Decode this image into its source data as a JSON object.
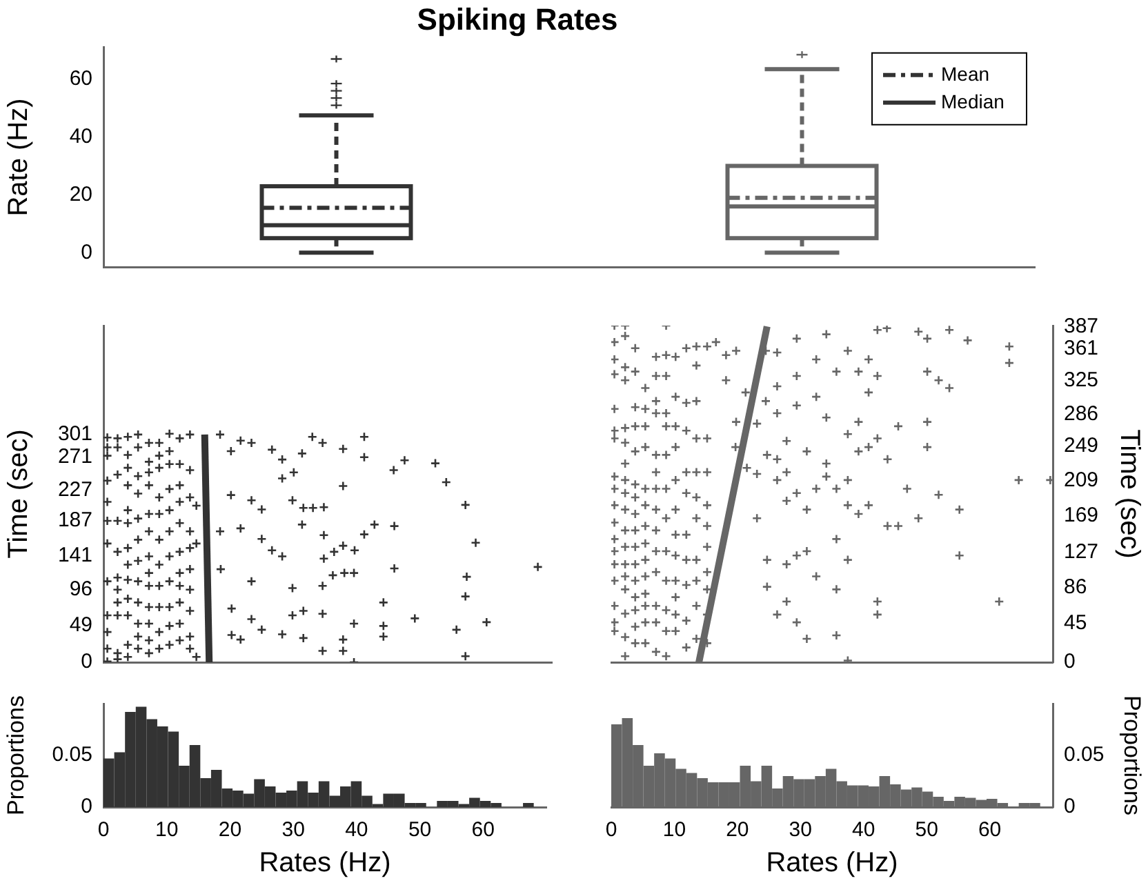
{
  "chart_data": [
    {
      "type": "box",
      "title": "Spiking Rates",
      "ylabel": "Rate (Hz)",
      "categories": [
        null,
        null
      ],
      "colors": [
        "#333333",
        "#666666"
      ],
      "ylim": [
        -5,
        71
      ],
      "yticks": [
        0,
        20,
        40,
        60
      ],
      "annotations": [
        "Mean",
        "Median"
      ],
      "boxes": [
        {
          "low": 0,
          "q1": 5,
          "median": 9.5,
          "q3": 23,
          "high": 47.5,
          "mean": 15.5,
          "outliers": [
            51,
            53.5,
            56,
            58.5,
            67
          ]
        },
        {
          "low": 0,
          "q1": 5,
          "median": 16,
          "q3": 30,
          "high": 63.5,
          "mean": 19,
          "outliers": [
            68.5
          ]
        }
      ]
    },
    {
      "type": "scatter",
      "ylabel": "Time (sec)",
      "xlim": [
        0,
        70
      ],
      "ylim": [
        0,
        445
      ],
      "yticks": [
        0,
        49,
        96,
        141,
        187,
        227,
        271,
        301
      ],
      "tick_labels": "y",
      "series": [
        {
          "color": "#333333",
          "marker": "cross",
          "x": [
            0.6,
            0.6,
            0.6,
            0.6,
            0.6,
            0.6,
            0.6,
            0.6,
            0.6,
            0.6,
            0.6,
            0.6,
            2.2,
            2.2,
            2.2,
            2.2,
            2.2,
            2.2,
            2.2,
            2.2,
            2.2,
            2.2,
            2.2,
            3.8,
            3.8,
            3.8,
            3.8,
            3.8,
            3.8,
            3.8,
            3.8,
            3.8,
            3.8,
            3.8,
            3.8,
            3.8,
            5.4,
            5.4,
            5.4,
            5.4,
            5.4,
            5.4,
            5.4,
            5.4,
            5.4,
            5.4,
            5.4,
            5.4,
            7.1,
            7.1,
            7.1,
            7.1,
            7.1,
            7.1,
            7.1,
            7.1,
            7.1,
            7.1,
            7.1,
            7.1,
            7.1,
            8.7,
            8.7,
            8.7,
            8.7,
            8.7,
            8.7,
            8.7,
            8.7,
            8.7,
            8.7,
            8.7,
            10.3,
            10.3,
            10.3,
            10.3,
            10.3,
            10.3,
            10.3,
            10.3,
            10.3,
            10.3,
            10.3,
            11.9,
            11.9,
            11.9,
            11.9,
            11.9,
            11.9,
            11.9,
            11.9,
            11.9,
            11.9,
            11.9,
            13.5,
            13.5,
            13.5,
            13.5,
            13.5,
            13.5,
            13.5,
            13.5,
            13.5,
            13.5,
            14.5,
            14.5,
            14.5,
            18.2,
            19.9,
            21.4,
            23.1,
            26.3,
            27.9,
            29.7,
            31.0,
            32.6,
            34.2,
            37.4,
            40.7,
            40.7,
            45.3,
            47.0,
            51.8,
            53.5,
            56.5,
            19.9,
            23.1,
            24.7,
            27.9,
            29.5,
            31.2,
            32.7,
            34.4,
            37.4,
            31.0,
            34.4,
            37.4,
            42.3,
            45.4,
            18.2,
            21.4,
            24.7,
            26.3,
            27.9,
            34.4,
            36.0,
            39.2,
            40.7,
            58.1,
            18.3,
            23.1,
            29.5,
            34.2,
            35.8,
            37.6,
            39.1,
            45.4,
            67.8,
            56.7,
            20.0,
            23.1,
            24.7,
            27.9,
            29.5,
            31.2,
            34.2,
            39.1,
            43.7,
            43.7,
            43.7,
            48.6,
            55.1,
            59.8,
            56.5,
            20.0,
            21.4,
            31.2,
            34.2,
            37.4,
            37.4,
            39.1,
            56.5
          ],
          "values": [
            297,
            284,
            273,
            240,
            212,
            187,
            157,
            107,
            62,
            40,
            18,
            1,
            296,
            284,
            248,
            187,
            146,
            112,
            96,
            79,
            62,
            12,
            4,
            298,
            274,
            257,
            234,
            201,
            184,
            151,
            129,
            109,
            84,
            62,
            23,
            7,
            301,
            284,
            246,
            223,
            190,
            162,
            134,
            107,
            79,
            51,
            34,
            18,
            290,
            265,
            251,
            234,
            196,
            173,
            140,
            118,
            101,
            73,
            51,
            29,
            12,
            290,
            273,
            257,
            218,
            196,
            162,
            129,
            101,
            73,
            40,
            18,
            302,
            279,
            262,
            229,
            201,
            173,
            140,
            107,
            73,
            48,
            23,
            296,
            262,
            234,
            212,
            184,
            146,
            118,
            101,
            79,
            51,
            29,
            301,
            254,
            218,
            173,
            151,
            123,
            96,
            68,
            34,
            18,
            207,
            157,
            7,
            301,
            279,
            293,
            290,
            281,
            268,
            251,
            276,
            298,
            290,
            282,
            298,
            271,
            254,
            267,
            263,
            238,
            208,
            221,
            214,
            202,
            243,
            214,
            204,
            204,
            205,
            233,
            182,
            168,
            154,
            182,
            180,
            173,
            177,
            163,
            148,
            140,
            137,
            146,
            148,
            169,
            158,
            123,
            107,
            98,
            101,
            115,
            118,
            118,
            124,
            126,
            113,
            71,
            57,
            43,
            37,
            62,
            68,
            64,
            51,
            79,
            48,
            34,
            58,
            43,
            53,
            87,
            36,
            30,
            32,
            15,
            15,
            30,
            0,
            8
          ]
        },
        {
          "type": "line",
          "color": "#333333",
          "x": [
            16.5,
            15.8
          ],
          "values": [
            0,
            301
          ]
        }
      ]
    },
    {
      "type": "scatter",
      "y2label": "Time (sec)",
      "xlim": [
        0,
        70
      ],
      "y2lim": [
        0,
        388
      ],
      "y2ticks": [
        0,
        45,
        86,
        127,
        169,
        209,
        249,
        286,
        325,
        361,
        387
      ],
      "tick_labels": "y",
      "series": [
        {
          "color": "#666666",
          "axis": "y2",
          "marker": "cross",
          "x": [
            0.5,
            0.5,
            0.5,
            0.5,
            0.5,
            0.5,
            0.5,
            0.5,
            0.5,
            0.5,
            0.5,
            0.5,
            0.5,
            0.5,
            0.5,
            0.5,
            0.5,
            0.5,
            2.2,
            2.2,
            2.2,
            2.2,
            2.2,
            2.2,
            2.2,
            2.2,
            2.2,
            2.2,
            2.2,
            2.2,
            2.2,
            2.2,
            2.2,
            2.2,
            2.2,
            2.2,
            3.8,
            3.8,
            3.8,
            3.8,
            3.8,
            3.8,
            3.8,
            3.8,
            3.8,
            3.8,
            3.8,
            3.8,
            3.8,
            3.8,
            3.8,
            3.8,
            5.4,
            5.4,
            5.4,
            5.4,
            5.4,
            5.4,
            5.4,
            5.4,
            5.4,
            5.4,
            5.4,
            5.4,
            5.4,
            5.4,
            7.1,
            7.1,
            7.1,
            7.1,
            7.1,
            7.1,
            7.1,
            7.1,
            7.1,
            7.1,
            7.1,
            7.1,
            7.1,
            7.1,
            8.7,
            8.7,
            8.7,
            8.7,
            8.7,
            8.7,
            8.7,
            8.7,
            8.7,
            8.7,
            8.7,
            8.7,
            8.7,
            10.2,
            10.2,
            10.2,
            10.2,
            10.2,
            10.2,
            10.2,
            10.2,
            10.2,
            10.2,
            10.2,
            10.2,
            11.9,
            11.9,
            11.9,
            11.9,
            11.9,
            11.9,
            11.9,
            11.9,
            11.9,
            11.9,
            13.5,
            13.5,
            13.5,
            13.5,
            13.5,
            13.5,
            13.5,
            13.5,
            13.5,
            13.5,
            13.5,
            15.2,
            15.2,
            15.2,
            15.2,
            15.2,
            15.2,
            15.2,
            15.2,
            15.2,
            15.2,
            16.6,
            18.2,
            18.2,
            19.8,
            19.8,
            19.7,
            21.3,
            21.5,
            23.1,
            23.1,
            23.1,
            24.5,
            24.5,
            24.7,
            24.7,
            24.7,
            26.3,
            26.3,
            26.3,
            26.3,
            26.3,
            26.3,
            27.8,
            27.8,
            27.8,
            27.8,
            27.8,
            29.4,
            29.4,
            29.4,
            29.4,
            29.4,
            29.4,
            31.0,
            31.0,
            31.0,
            31.0,
            32.5,
            32.5,
            32.5,
            32.5,
            34.1,
            34.1,
            34.1,
            34.1,
            35.7,
            35.7,
            35.7,
            35.7,
            35.7,
            37.5,
            37.5,
            37.5,
            37.5,
            37.5,
            37.5,
            39.2,
            39.2,
            39.2,
            39.2,
            40.8,
            40.8,
            40.8,
            40.8,
            42.2,
            42.2,
            42.2,
            42.2,
            42.2,
            43.7,
            43.8,
            43.8,
            45.5,
            45.5,
            46.9,
            48.7,
            48.7,
            50.1,
            50.1,
            50.1,
            50.1,
            51.9,
            51.9,
            53.6,
            53.6,
            55.2,
            55.2,
            56.5,
            61.5,
            63.1,
            63.1,
            64.6,
            69.6
          ],
          "values": [
            388,
            369,
            349,
            332,
            292,
            267,
            258,
            214,
            200,
            181,
            161,
            142,
            128,
            113,
            94,
            65,
            46,
            36,
            388,
            376,
            340,
            325,
            270,
            253,
            229,
            210,
            195,
            176,
            152,
            133,
            113,
            99,
            84,
            56,
            29,
            7,
            362,
            335,
            294,
            272,
            243,
            205,
            190,
            171,
            152,
            133,
            113,
            94,
            75,
            60,
            41,
            22,
            316,
            292,
            272,
            248,
            200,
            181,
            157,
            137,
            118,
            99,
            79,
            65,
            46,
            22,
            352,
            330,
            301,
            287,
            239,
            219,
            200,
            176,
            152,
            128,
            104,
            65,
            46,
            12,
            388,
            354,
            330,
            287,
            272,
            239,
            200,
            166,
            128,
            94,
            60,
            36,
            7,
            352,
            306,
            272,
            248,
            210,
            176,
            147,
            123,
            94,
            75,
            55,
            36,
            362,
            299,
            267,
            219,
            195,
            147,
            118,
            89,
            48,
            17,
            364,
            342,
            301,
            258,
            219,
            190,
            166,
            118,
            94,
            65,
            27,
            364,
            258,
            219,
            181,
            157,
            133,
            104,
            84,
            55,
            22,
            369,
            354,
            325,
            359,
            277,
            248,
            311,
            224,
            275,
            217,
            166,
            359,
            301,
            239,
            118,
            87,
            357,
            318,
            287,
            234,
            210,
            55,
            255,
            219,
            186,
            113,
            70,
            373,
            330,
            296,
            195,
            123,
            46,
            243,
            176,
            128,
            27,
            349,
            306,
            200,
            99,
            378,
            282,
            229,
            214,
            335,
            200,
            142,
            84,
            31,
            359,
            263,
            210,
            181,
            118,
            2,
            335,
            277,
            243,
            171,
            349,
            311,
            248,
            181,
            383,
            330,
            258,
            70,
            55,
            385,
            234,
            157,
            272,
            157,
            200,
            381,
            166,
            373,
            335,
            277,
            248,
            325,
            193,
            383,
            316,
            176,
            123,
            371,
            70,
            364,
            345,
            210,
            210
          ]
        },
        {
          "type": "line",
          "color": "#666666",
          "axis": "y2",
          "x": [
            13.9,
            24.7
          ],
          "values": [
            0,
            387
          ]
        }
      ]
    },
    {
      "type": "histogram",
      "xlabel": "Rates (Hz)",
      "ylabel": "Proportions",
      "color": "#333333",
      "xlim": [
        0,
        70
      ],
      "xticks": [
        0,
        10,
        20,
        30,
        40,
        50,
        60
      ],
      "ylim": [
        0,
        0.1
      ],
      "yticks": [
        0,
        0.05
      ],
      "bins": [
        0,
        1.7,
        3.4,
        5.1,
        6.8,
        8.5,
        10.2,
        11.9,
        13.6,
        15.3,
        17,
        18.7,
        20.4,
        22.1,
        23.8,
        25.5,
        27.2,
        28.9,
        30.6,
        32.3,
        34,
        35.7,
        37.4,
        39.1,
        40.8,
        42.5,
        44.2,
        45.9,
        47.6,
        49.3,
        51,
        52.7,
        54.4,
        56.1,
        57.8,
        59.5,
        61.2,
        62.9,
        64.6,
        66.3,
        68
      ],
      "values": [
        0.047,
        0.053,
        0.092,
        0.097,
        0.085,
        0.078,
        0.073,
        0.04,
        0.06,
        0.028,
        0.036,
        0.018,
        0.016,
        0.013,
        0.027,
        0.02,
        0.014,
        0.016,
        0.025,
        0.014,
        0.025,
        0.011,
        0.02,
        0.025,
        0.011,
        0.003,
        0.013,
        0.013,
        0.004,
        0.004,
        0,
        0.006,
        0.006,
        0.003,
        0.009,
        0.006,
        0.004,
        0,
        0,
        0.004
      ]
    },
    {
      "type": "histogram",
      "xlabel": "Rates (Hz)",
      "y2label": "Proportions",
      "xlim": [
        0,
        70
      ],
      "xticks": [
        0,
        10,
        20,
        30,
        40,
        50,
        60
      ],
      "y2lim": [
        0,
        0.1
      ],
      "y2ticks": [
        0,
        0.05
      ],
      "bins": [
        0,
        1.7,
        3.4,
        5.1,
        6.8,
        8.5,
        10.2,
        11.9,
        13.6,
        15.3,
        17,
        18.7,
        20.4,
        22.1,
        23.8,
        25.5,
        27.2,
        28.9,
        30.6,
        32.3,
        34,
        35.7,
        37.4,
        39.1,
        40.8,
        42.5,
        44.2,
        45.9,
        47.6,
        49.3,
        51,
        52.7,
        54.4,
        56.1,
        57.8,
        59.5,
        61.2,
        62.9,
        64.6,
        66.3,
        68
      ],
      "series": [
        {
          "axis": "y2",
          "color": "#666666",
          "values": [
            0.08,
            0.086,
            0.06,
            0.04,
            0.052,
            0.047,
            0.037,
            0.033,
            0.028,
            0.024,
            0.024,
            0.024,
            0.04,
            0.025,
            0.04,
            0.018,
            0.03,
            0.027,
            0.027,
            0.03,
            0.037,
            0.025,
            0.021,
            0.021,
            0.02,
            0.03,
            0.022,
            0.017,
            0.019,
            0.015,
            0.01,
            0.006,
            0.01,
            0.009,
            0.007,
            0.008,
            0.004,
            0,
            0.004,
            0.004
          ]
        }
      ]
    }
  ]
}
